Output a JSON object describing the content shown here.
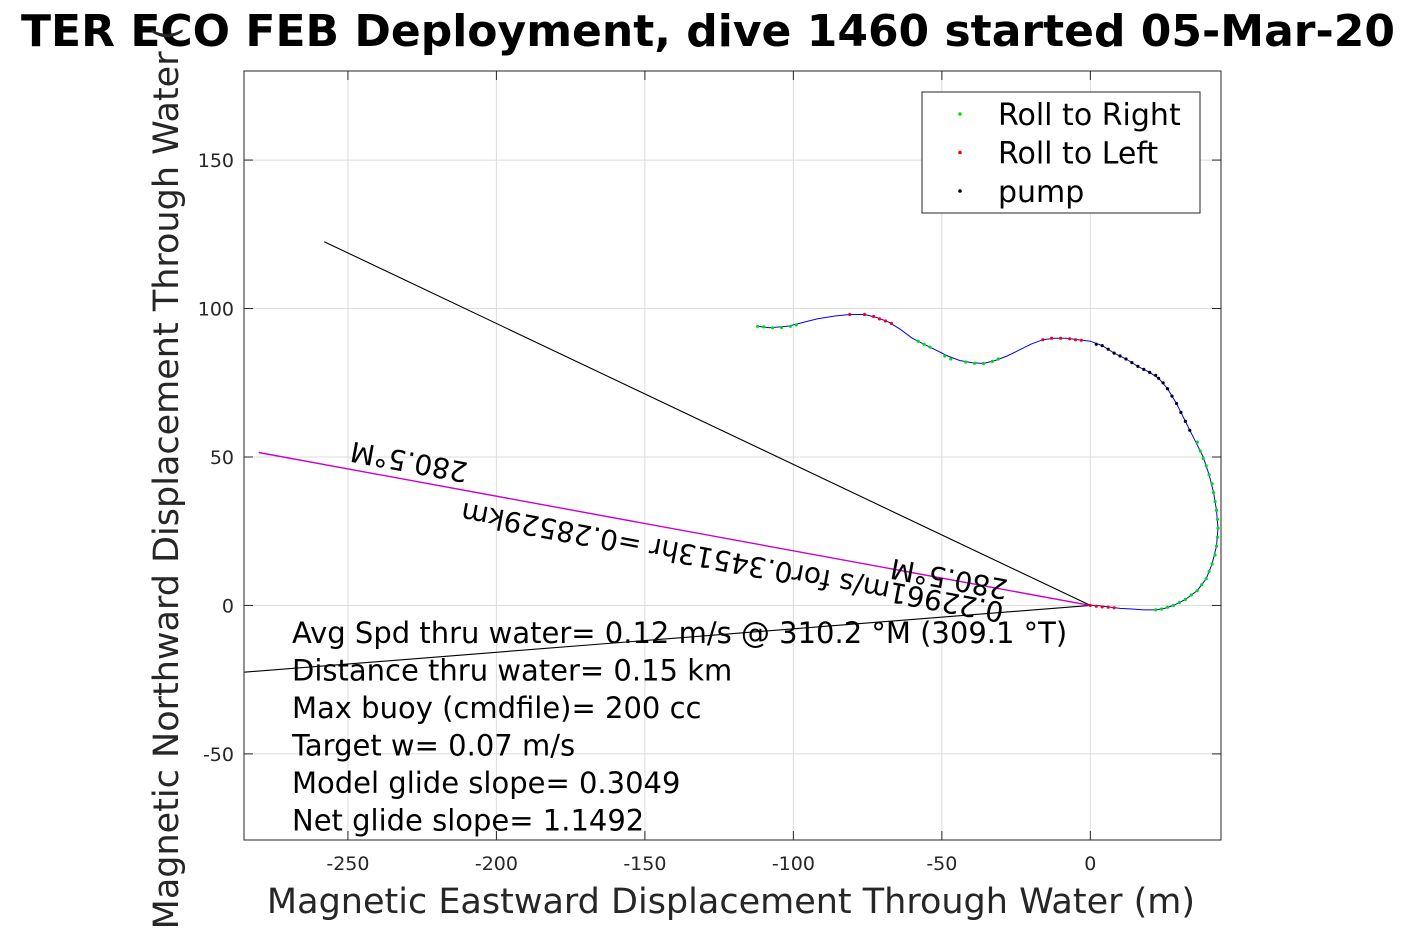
{
  "chart_data": {
    "type": "scatter",
    "title": "TER ECO FEB Deployment, dive 1460 started 05-Mar-20",
    "xlabel": "Magnetic Eastward Displacement Through Water (m)",
    "ylabel": "Magnetic Northward Displacement Through Water (",
    "xlim": [
      -285,
      44
    ],
    "ylim": [
      -79,
      180
    ],
    "xticks": [
      -250,
      -200,
      -150,
      -100,
      -50,
      0
    ],
    "yticks": [
      -50,
      0,
      50,
      100,
      150
    ],
    "xtick_labels": [
      "-250",
      "-200",
      "-150",
      "-100",
      "-50",
      "0"
    ],
    "ytick_labels": [
      "-50",
      "0",
      "50",
      "100",
      "150"
    ],
    "grid": true,
    "legend_position": "top-right",
    "legend": [
      {
        "name": "Roll to Right",
        "color": "#00dd00"
      },
      {
        "name": "Roll to Left",
        "color": "#ff0000"
      },
      {
        "name": "pump",
        "color": "#000000"
      }
    ],
    "track": {
      "color": "#0000ff",
      "points": [
        [
          -112,
          94
        ],
        [
          -108,
          93.5
        ],
        [
          -102,
          94
        ],
        [
          -98,
          95
        ],
        [
          -92,
          96.5
        ],
        [
          -86,
          97.5
        ],
        [
          -81,
          98
        ],
        [
          -76,
          98
        ],
        [
          -72,
          97
        ],
        [
          -68,
          95.5
        ],
        [
          -64,
          93
        ],
        [
          -60,
          90
        ],
        [
          -56,
          88
        ],
        [
          -52,
          86
        ],
        [
          -48,
          84
        ],
        [
          -44,
          82.5
        ],
        [
          -40,
          81.8
        ],
        [
          -36,
          81.5
        ],
        [
          -32,
          82.5
        ],
        [
          -28,
          84
        ],
        [
          -24,
          86
        ],
        [
          -20,
          88
        ],
        [
          -16,
          89.5
        ],
        [
          -12,
          90
        ],
        [
          -8,
          90
        ],
        [
          -4,
          89.5
        ],
        [
          0,
          89
        ],
        [
          4,
          87.5
        ],
        [
          8,
          85
        ],
        [
          12,
          83
        ],
        [
          16,
          80.5
        ],
        [
          20,
          78.5
        ],
        [
          23,
          76.5
        ],
        [
          26,
          73
        ],
        [
          29,
          68
        ],
        [
          32,
          62
        ],
        [
          35,
          56
        ],
        [
          38,
          50
        ],
        [
          40,
          44
        ],
        [
          41.5,
          38
        ],
        [
          42.5,
          32
        ],
        [
          43,
          26
        ],
        [
          42.5,
          20
        ],
        [
          41,
          14
        ],
        [
          39,
          9
        ],
        [
          36,
          5
        ],
        [
          32,
          2
        ],
        [
          28,
          0
        ],
        [
          25,
          -1
        ],
        [
          22,
          -1.5
        ],
        [
          18,
          -1.5
        ],
        [
          14,
          -1.2
        ],
        [
          10,
          -1
        ],
        [
          6,
          -0.5
        ],
        [
          2,
          0
        ],
        [
          0,
          0
        ]
      ]
    },
    "series": [
      {
        "name": "Roll to Right",
        "color": "#00dd00",
        "points": [
          [
            -112,
            94
          ],
          [
            -110,
            93.8
          ],
          [
            -107,
            93.5
          ],
          [
            -104,
            93.6
          ],
          [
            -101,
            94
          ],
          [
            -99,
            94.5
          ],
          [
            -58,
            89
          ],
          [
            -56,
            88
          ],
          [
            -54,
            87
          ],
          [
            -49,
            84
          ],
          [
            -47,
            83
          ],
          [
            -42,
            82
          ],
          [
            -39,
            81.6
          ],
          [
            -36,
            81.5
          ],
          [
            -33,
            82.2
          ],
          [
            -31,
            83
          ],
          [
            36,
            55
          ],
          [
            37,
            52
          ],
          [
            38,
            49.5
          ],
          [
            39,
            47
          ],
          [
            40,
            44
          ],
          [
            41,
            41
          ],
          [
            41.5,
            38
          ],
          [
            42,
            35
          ],
          [
            42.5,
            32
          ],
          [
            42.8,
            29
          ],
          [
            43,
            26
          ],
          [
            42.8,
            23
          ],
          [
            42.5,
            20
          ],
          [
            42,
            17
          ],
          [
            41,
            14
          ],
          [
            40,
            11.5
          ],
          [
            39,
            9
          ],
          [
            37.5,
            7
          ],
          [
            36,
            5
          ],
          [
            34,
            3.5
          ],
          [
            32,
            2
          ],
          [
            30,
            1
          ],
          [
            28,
            0
          ],
          [
            26,
            -0.6
          ],
          [
            24,
            -1.2
          ],
          [
            22,
            -1.5
          ]
        ]
      },
      {
        "name": "Roll to Left",
        "color": "#ff0000",
        "points": [
          [
            -81,
            98
          ],
          [
            -76,
            98
          ],
          [
            -73,
            97.3
          ],
          [
            -71,
            96.5
          ],
          [
            -69,
            95.8
          ],
          [
            -67,
            95
          ],
          [
            -16,
            89.5
          ],
          [
            -13,
            90
          ],
          [
            -10,
            90
          ],
          [
            -7,
            89.8
          ],
          [
            -5,
            89.5
          ],
          [
            -3,
            89.3
          ],
          [
            0,
            0
          ],
          [
            2,
            -0.3
          ],
          [
            4,
            -0.5
          ],
          [
            6,
            -0.6
          ],
          [
            8,
            -0.8
          ]
        ]
      },
      {
        "name": "pump",
        "color": "#000000",
        "points": [
          [
            2,
            88
          ],
          [
            4,
            87.5
          ],
          [
            6,
            86.3
          ],
          [
            8,
            85
          ],
          [
            10,
            84
          ],
          [
            12,
            83
          ],
          [
            14,
            81.8
          ],
          [
            16,
            80.5
          ],
          [
            18,
            79.5
          ],
          [
            20,
            78.5
          ],
          [
            22,
            77.5
          ],
          [
            23,
            76.5
          ],
          [
            24.5,
            75
          ],
          [
            26,
            73
          ],
          [
            27.5,
            70.5
          ],
          [
            29,
            68
          ],
          [
            30.5,
            65
          ],
          [
            32,
            62
          ],
          [
            33.5,
            59
          ]
        ]
      }
    ],
    "lines": [
      {
        "name": "reference-line-upper",
        "color": "#000000",
        "points": [
          [
            -258,
            122.5
          ],
          [
            0,
            0
          ]
        ]
      },
      {
        "name": "reference-line-lower",
        "color": "#000000",
        "points": [
          [
            -285,
            -22.5
          ],
          [
            0,
            0
          ]
        ]
      },
      {
        "name": "heading-line",
        "color": "#cc00cc",
        "points": [
          [
            -280,
            51.5
          ],
          [
            0,
            0
          ]
        ]
      }
    ],
    "annotations": {
      "heading_text_a": "280.5°M",
      "heading_text_b": "0.22961m/s for0.34513hr =0.28529km",
      "heading_text_c": "280.5°M"
    },
    "stats": [
      "Avg Spd thru water=  0.12 m/s @ 310.2 °M (309.1 °T)",
      "Distance thru water=  0.15 km",
      "Max buoy (cmdfile)= 200 cc",
      "Target w= 0.07 m/s",
      "Model glide slope= 0.3049",
      "Net glide slope= 1.1492"
    ]
  }
}
